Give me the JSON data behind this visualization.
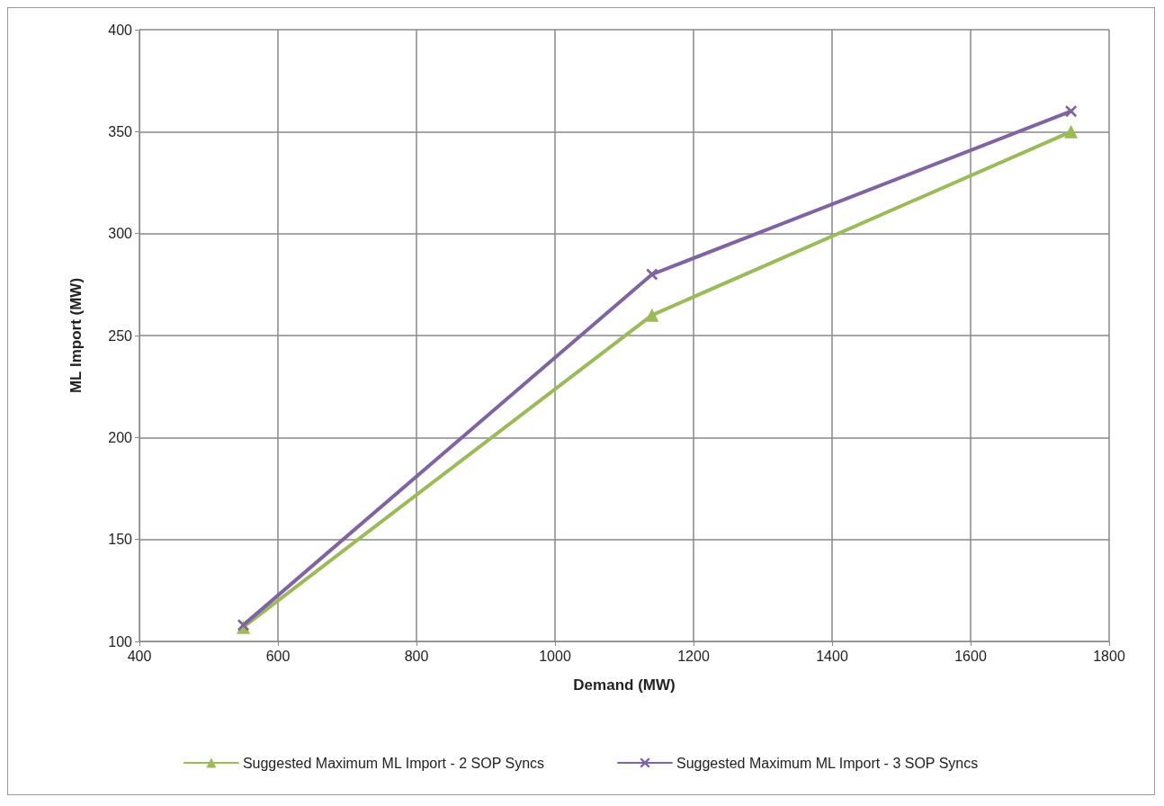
{
  "chart_data": {
    "type": "line",
    "xlabel": "Demand (MW)",
    "ylabel": "ML Import (MW)",
    "xlim": [
      400,
      1800
    ],
    "xticks": [
      400,
      600,
      800,
      1000,
      1200,
      1400,
      1600,
      1800
    ],
    "ylim": [
      100,
      400
    ],
    "yticks": [
      100,
      150,
      200,
      250,
      300,
      350,
      400
    ],
    "grid": true,
    "legend": "bottom",
    "line_style": "solid",
    "series": [
      {
        "name": "Suggested Maximum ML Import - 2 SOP Syncs",
        "color": "#9bbb59",
        "marker": "triangle",
        "x": [
          550,
          1140,
          1745
        ],
        "values": [
          107,
          260,
          350
        ]
      },
      {
        "name": "Suggested Maximum ML Import - 3 SOP Syncs",
        "color": "#8064a2",
        "marker": "cross",
        "x": [
          550,
          1140,
          1745
        ],
        "values": [
          108,
          280,
          360
        ]
      }
    ]
  }
}
